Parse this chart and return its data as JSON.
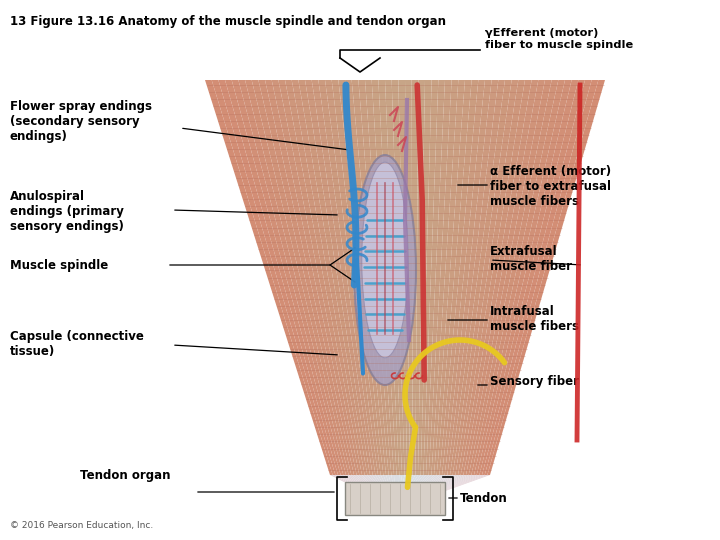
{
  "title": "13 Figure 13.16 Anatomy of the muscle spindle and tendon organ",
  "background_color": "#ffffff",
  "fig_width": 7.2,
  "fig_height": 5.4,
  "dpi": 100,
  "labels": {
    "gamma_efferent": "γEfferent (motor)\nfiber to muscle spindle",
    "flower_spray": "Flower spray endings\n(secondary sensory\nendings)",
    "anulospiral": "Anulospiral\nendings (primary\nsensory endings)",
    "muscle_spindle": "Muscle spindle",
    "capsule": "Capsule (connective\ntissue)",
    "alpha_efferent": "α Efferent (motor)\nfiber to extrafusal\nmuscle fibers",
    "extrafusal": "Extrafusal\nmuscle fiber",
    "intrafusal": "Intrafusal\nmuscle fibers",
    "sensory_fiber": "Sensory fiber",
    "tendon_organ": "Tendon organ",
    "tendon": "Tendon",
    "copyright": "© 2016 Pearson Education, Inc."
  },
  "muscle_color_dark": "#C07060",
  "muscle_color_mid": "#D4907A",
  "muscle_color_light": "#E8C0B0",
  "spindle_color": "#B8B0CC",
  "tendon_color": "#D0CCE0"
}
